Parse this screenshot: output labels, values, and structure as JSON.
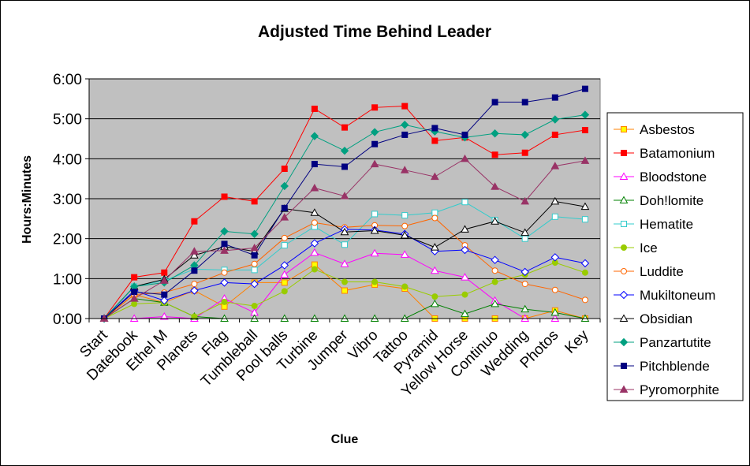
{
  "chart_data": {
    "type": "line",
    "title": "Adjusted Time Behind Leader",
    "xlabel": "Clue",
    "ylabel": "Hours:Minutes",
    "ylim": [
      0,
      360
    ],
    "y_ticks": [
      {
        "value": 0,
        "label": "0:00"
      },
      {
        "value": 60,
        "label": "1:00"
      },
      {
        "value": 120,
        "label": "2:00"
      },
      {
        "value": 180,
        "label": "3:00"
      },
      {
        "value": 240,
        "label": "4:00"
      },
      {
        "value": 300,
        "label": "5:00"
      },
      {
        "value": 360,
        "label": "6:00"
      }
    ],
    "grid": "horizontal",
    "legend_position": "right",
    "plot_background": "#c0c0c0",
    "categories": [
      "Start",
      "Datebook",
      "Ethel M",
      "Planets",
      "Flag",
      "Tumbleball",
      "Pool balls",
      "Turbine",
      "Jumper",
      "Vibro",
      "Tattoo",
      "Pyramid",
      "Yellow Horse",
      "Continuo",
      "Wedding",
      "Photos",
      "Key"
    ],
    "series": [
      {
        "name": "Asbestos",
        "color": "#ff8000",
        "fill": "#ffff00",
        "marker": "square",
        "values": [
          0,
          36,
          24,
          42,
          18,
          54,
          54,
          81,
          42,
          51,
          45,
          0,
          0,
          0,
          0,
          12,
          0
        ]
      },
      {
        "name": "Batamonium",
        "color": "#ff0000",
        "fill": "#ff0000",
        "marker": "square",
        "values": [
          0,
          62,
          69,
          146,
          183,
          176,
          225,
          315,
          287,
          317,
          319,
          267,
          272,
          246,
          249,
          276,
          283
        ]
      },
      {
        "name": "Bloodstone",
        "color": "#ff00ff",
        "fill": "#ffffff",
        "marker": "triangle",
        "values": [
          0,
          0,
          3,
          0,
          30,
          9,
          66,
          99,
          82,
          98,
          96,
          72,
          62,
          27,
          0,
          0,
          0
        ]
      },
      {
        "name": "Doh!lomite",
        "color": "#008000",
        "fill": "#ffffff",
        "marker": "triangle",
        "values": [
          0,
          30,
          24,
          3,
          0,
          0,
          0,
          0,
          0,
          0,
          0,
          22,
          7,
          22,
          14,
          9,
          0
        ]
      },
      {
        "name": "Hematite",
        "color": "#33cccc",
        "fill": "#ffffff",
        "marker": "square",
        "values": [
          0,
          48,
          57,
          74,
          73,
          73,
          110,
          138,
          111,
          157,
          155,
          159,
          175,
          148,
          120,
          153,
          149
        ]
      },
      {
        "name": "Ice",
        "color": "#99cc00",
        "fill": "#99cc00",
        "marker": "circle",
        "values": [
          0,
          22,
          24,
          3,
          25,
          19,
          41,
          74,
          55,
          55,
          48,
          33,
          36,
          55,
          66,
          84,
          69
        ]
      },
      {
        "name": "Luddite",
        "color": "#ff6600",
        "fill": "#ffffff",
        "marker": "circle",
        "values": [
          0,
          36,
          39,
          52,
          69,
          82,
          121,
          144,
          137,
          140,
          139,
          151,
          110,
          72,
          52,
          43,
          28
        ]
      },
      {
        "name": "Mukiltoneum",
        "color": "#0000ff",
        "fill": "#ffffff",
        "marker": "diamond",
        "values": [
          0,
          42,
          27,
          42,
          54,
          52,
          80,
          113,
          134,
          133,
          127,
          101,
          103,
          88,
          70,
          92,
          83
        ]
      },
      {
        "name": "Obsidian",
        "color": "#000000",
        "fill": "#ffffff",
        "marker": "triangle",
        "values": [
          0,
          48,
          59,
          95,
          108,
          101,
          165,
          159,
          130,
          132,
          125,
          107,
          134,
          146,
          129,
          176,
          168
        ]
      },
      {
        "name": "Panzartutite",
        "color": "#00a080",
        "fill": "#00a080",
        "marker": "diamond",
        "values": [
          0,
          48,
          54,
          80,
          131,
          127,
          199,
          274,
          252,
          280,
          291,
          281,
          272,
          278,
          276,
          299,
          306
        ]
      },
      {
        "name": "Pitchblende",
        "color": "#000080",
        "fill": "#000080",
        "marker": "square",
        "values": [
          0,
          40,
          36,
          72,
          112,
          95,
          166,
          232,
          228,
          262,
          276,
          286,
          276,
          325,
          325,
          332,
          345
        ]
      },
      {
        "name": "Pyromorphite",
        "color": "#993366",
        "fill": "#993366",
        "marker": "triangle",
        "values": [
          0,
          30,
          57,
          101,
          102,
          106,
          152,
          196,
          184,
          232,
          223,
          213,
          240,
          198,
          176,
          229,
          237
        ]
      }
    ]
  }
}
